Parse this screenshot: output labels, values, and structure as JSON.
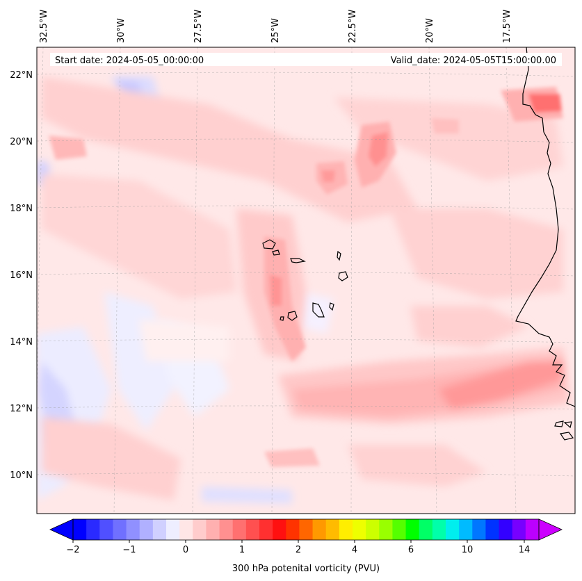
{
  "header": {
    "start_date": "Start date: 2024-05-05_00:00:00",
    "valid_date": "Valid_date: 2024-05-05T15:00:00.00"
  },
  "map": {
    "projection": "orthographic-like",
    "lon_labels": [
      "32.5°W",
      "30°W",
      "27.5°W",
      "25°W",
      "22.5°W",
      "20°W",
      "17.5°W"
    ],
    "lat_labels": [
      "22°N",
      "20°N",
      "18°N",
      "16°N",
      "14°N",
      "12°N",
      "10°N"
    ],
    "gridlines": true,
    "coastline_color": "#000000"
  },
  "colorbar": {
    "label": "300 hPa potenital vorticity (PVU)",
    "tick_labels": [
      "−2",
      "−1",
      "0",
      "1",
      "2",
      "4",
      "6",
      "10",
      "14"
    ],
    "colors": [
      "#0000ff",
      "#2a2aff",
      "#5050ff",
      "#7070ff",
      "#9090ff",
      "#b0b0ff",
      "#d0d0ff",
      "#eeeeff",
      "#ffe6e6",
      "#ffcccc",
      "#ffb0b0",
      "#ff9090",
      "#ff7070",
      "#ff5050",
      "#ff3030",
      "#ff1010",
      "#ff3300",
      "#ff6600",
      "#ff9900",
      "#ffbb00",
      "#ffee00",
      "#eeff00",
      "#ccff00",
      "#99ff00",
      "#55ff00",
      "#00ff00",
      "#00ff66",
      "#00ffaa",
      "#00eeee",
      "#00bbff",
      "#0077ff",
      "#0033ff",
      "#3300ff",
      "#7700ff",
      "#bb00ff"
    ],
    "extend": "both"
  }
}
